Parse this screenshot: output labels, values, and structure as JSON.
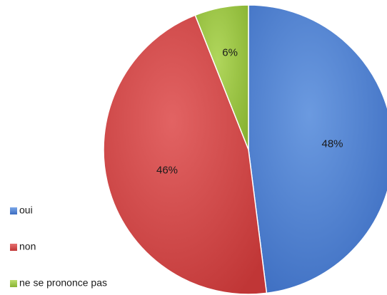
{
  "chart_data": {
    "type": "pie",
    "categories": [
      "oui",
      "non",
      "ne se prononce pas"
    ],
    "values": [
      48,
      46,
      6
    ],
    "data_labels": [
      "48%",
      "46%",
      "6%"
    ],
    "colors": [
      "#4a7fd0",
      "#d24242",
      "#99c43f"
    ],
    "legend_position": "bottom-left",
    "start_angle": "12 o'clock",
    "direction": "clockwise"
  }
}
